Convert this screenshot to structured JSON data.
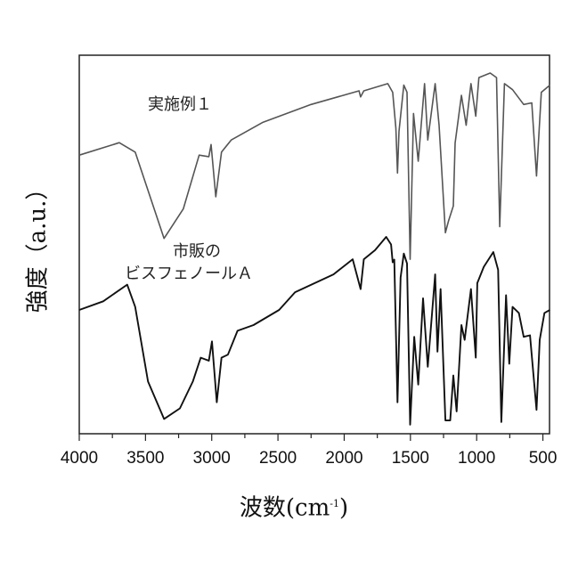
{
  "chart_data": {
    "type": "line",
    "title": "",
    "xlabel": "波数",
    "xlabel_unit_prefix": "(cm",
    "xlabel_unit_sup": "-1",
    "xlabel_unit_suffix": ")",
    "ylabel": "強度（a.u.）",
    "xlim": [
      4000,
      450
    ],
    "ylim": [
      0,
      100
    ],
    "x_ticks": [
      4000,
      3500,
      3000,
      2500,
      2000,
      1500,
      1000,
      500
    ],
    "x_tick_labels": [
      "4000",
      "3500",
      "3000",
      "2500",
      "2000",
      "1500",
      "1000",
      "500"
    ],
    "x_minor_tick_step": 250,
    "grid": false,
    "annotations": [
      {
        "text": "実施例１",
        "series": 0
      },
      {
        "text": "市販の",
        "series": 1
      },
      {
        "text": "ビスフェノールＡ",
        "series": 1
      }
    ],
    "series": [
      {
        "name": "実施例１",
        "color": "#555555",
        "x": [
          4000,
          3698,
          3578,
          3360,
          3215,
          3095,
          3022,
          3005,
          2969,
          2926,
          2853,
          2612,
          2250,
          1888,
          1876,
          1852,
          1671,
          1634,
          1610,
          1598,
          1586,
          1550,
          1526,
          1502,
          1477,
          1441,
          1393,
          1369,
          1313,
          1284,
          1236,
          1212,
          1176,
          1163,
          1115,
          1079,
          1043,
          1007,
          983,
          898,
          850,
          826,
          790,
          729,
          645,
          584,
          548,
          512,
          447
        ],
        "y": [
          73.6,
          76.9,
          74.4,
          51.6,
          59.4,
          73.6,
          73.2,
          76.4,
          62.6,
          74.4,
          77.6,
          82.3,
          87,
          90.6,
          89,
          90.6,
          92.5,
          90.2,
          80.7,
          68.9,
          79.9,
          92.1,
          90.2,
          46.1,
          84.6,
          72,
          92.5,
          77.6,
          92.5,
          81.5,
          53.1,
          56.3,
          60.2,
          76.8,
          89.4,
          81.5,
          92.5,
          83.9,
          94.1,
          95.3,
          94.1,
          54.7,
          92.5,
          90.9,
          87,
          87.4,
          68.1,
          90.2,
          92.1
        ]
      },
      {
        "name": "市販のビスフェノールＡ",
        "color": "#111111",
        "x": [
          4000,
          3819,
          3638,
          3578,
          3481,
          3360,
          3240,
          3143,
          3083,
          3022,
          2998,
          2962,
          2926,
          2878,
          2805,
          2685,
          2491,
          2371,
          2081,
          1936,
          1876,
          1852,
          1767,
          1683,
          1646,
          1634,
          1622,
          1598,
          1574,
          1550,
          1526,
          1502,
          1471,
          1441,
          1405,
          1369,
          1313,
          1296,
          1272,
          1236,
          1200,
          1176,
          1151,
          1115,
          1091,
          1043,
          1007,
          995,
          946,
          874,
          838,
          814,
          778,
          754,
          729,
          681,
          645,
          597,
          548,
          524,
          488,
          447
        ],
        "y": [
          32.7,
          35,
          39.4,
          33.5,
          13.8,
          3.9,
          6.7,
          13.8,
          20.1,
          19.3,
          24.4,
          8.3,
          20.1,
          20.9,
          27.2,
          28.7,
          32.7,
          37.4,
          42.1,
          46.1,
          38.2,
          46.1,
          48.5,
          52,
          50,
          45.3,
          46,
          8.3,
          41.3,
          47.6,
          45,
          2.4,
          25.6,
          13,
          35.8,
          17.7,
          42.1,
          21.7,
          38.2,
          3.5,
          3.5,
          15.4,
          5.9,
          28.7,
          24.8,
          38.2,
          20.1,
          39.8,
          44.1,
          48,
          43.3,
          3.1,
          36.6,
          18.5,
          33.5,
          31.9,
          25.6,
          26,
          6.3,
          24.8,
          31.9,
          32.7
        ]
      }
    ]
  }
}
